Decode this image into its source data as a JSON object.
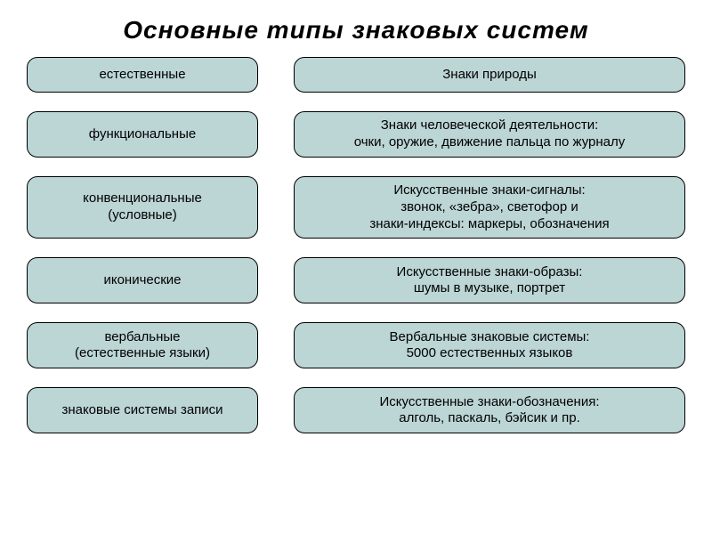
{
  "title": "Основные типы знаковых систем",
  "rows": [
    {
      "left": "естественные",
      "right": "Знаки природы",
      "leftH": "h1",
      "rightH": "h1"
    },
    {
      "left": "функциональные",
      "right": "Знаки человеческой деятельности:\nочки, оружие, движение пальца по журналу",
      "leftH": "h1",
      "rightH": "h2"
    },
    {
      "left": "конвенциональные\n(условные)",
      "right": "Искусственные знаки-сигналы:\nзвонок, «зебра», светофор и\nзнаки-индексы: маркеры, обозначения",
      "leftH": "h2",
      "rightH": "h3"
    },
    {
      "left": "иконические",
      "right": "Искусственные знаки-образы:\nшумы в музыке, портрет",
      "leftH": "h1",
      "rightH": "h2"
    },
    {
      "left": "вербальные\n(естественные языки)",
      "right": "Вербальные знаковые системы:\n5000 естественных языков",
      "leftH": "h2",
      "rightH": "h2"
    },
    {
      "left": "знаковые системы записи",
      "right": "Искусственные знаки-обозначения:\nалголь, паскаль, бэйсик и пр.",
      "leftH": "h1",
      "rightH": "h2"
    }
  ],
  "style": {
    "type": "table",
    "columns": 2,
    "rowsCount": 6,
    "cell_background": "#bcd5d5",
    "cell_border_color": "#000000",
    "cell_border_width": 1.5,
    "cell_border_radius": 12,
    "page_background": "#ffffff",
    "title_fontsize": 28,
    "title_color": "#000000",
    "title_italic": true,
    "title_bold": true,
    "body_fontsize": 15,
    "body_color": "#000000",
    "left_column_width": 260,
    "column_gap": 40,
    "row_gap": 21
  }
}
